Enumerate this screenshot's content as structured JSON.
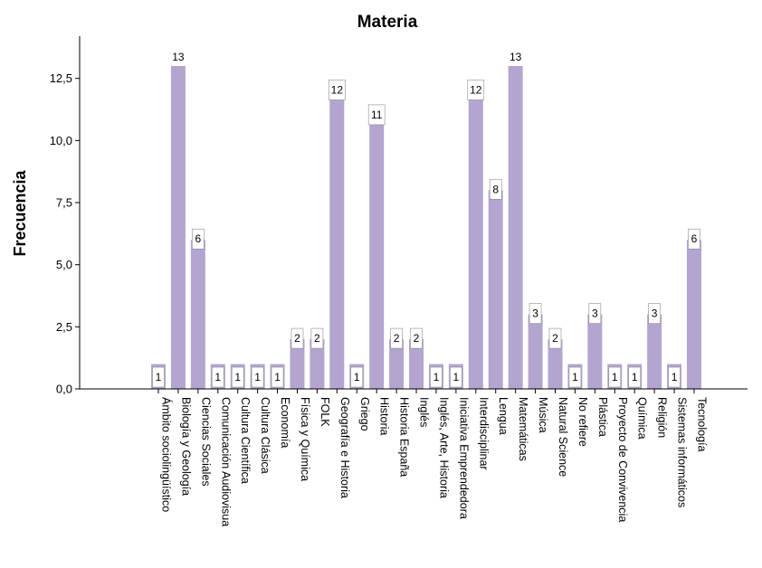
{
  "chart_data": {
    "type": "bar",
    "title": "Materia",
    "xlabel": "",
    "ylabel": "Frecuencia",
    "ylim": [
      0,
      14.2
    ],
    "yticks": [
      "0,0",
      "2,5",
      "5,0",
      "7,5",
      "10,0",
      "12,5"
    ],
    "ytick_values": [
      0,
      2.5,
      5,
      7.5,
      10,
      12.5
    ],
    "bar_color": "#b3a5d0",
    "grid": false,
    "categories": [
      "Ámbito sociolingüístico",
      "Biología y Geología",
      "Ciencias Sociales",
      "Comunicación Audiovisua",
      "Cultura Científica",
      "Cultura Clásica",
      "Economía",
      "Física y Química",
      "FOLK",
      "Geografía e Historia",
      "Griego",
      "Historia",
      "Historia España",
      "Inglés",
      "Inglés, Arte, Historia",
      "Iniciativa Emprendedora",
      "Interdisciplinar",
      "Lengua",
      "Matemáticas",
      "Música",
      "Natural Science",
      "No refiere",
      "Plástica",
      "Proyecto de Convivencia",
      "Química",
      "Religión",
      "Sistemas informáticos",
      "Tecnología"
    ],
    "values": [
      1,
      13,
      6,
      1,
      1,
      1,
      1,
      2,
      2,
      12,
      1,
      11,
      2,
      2,
      1,
      1,
      12,
      8,
      13,
      3,
      2,
      1,
      3,
      1,
      1,
      3,
      1,
      6
    ]
  }
}
